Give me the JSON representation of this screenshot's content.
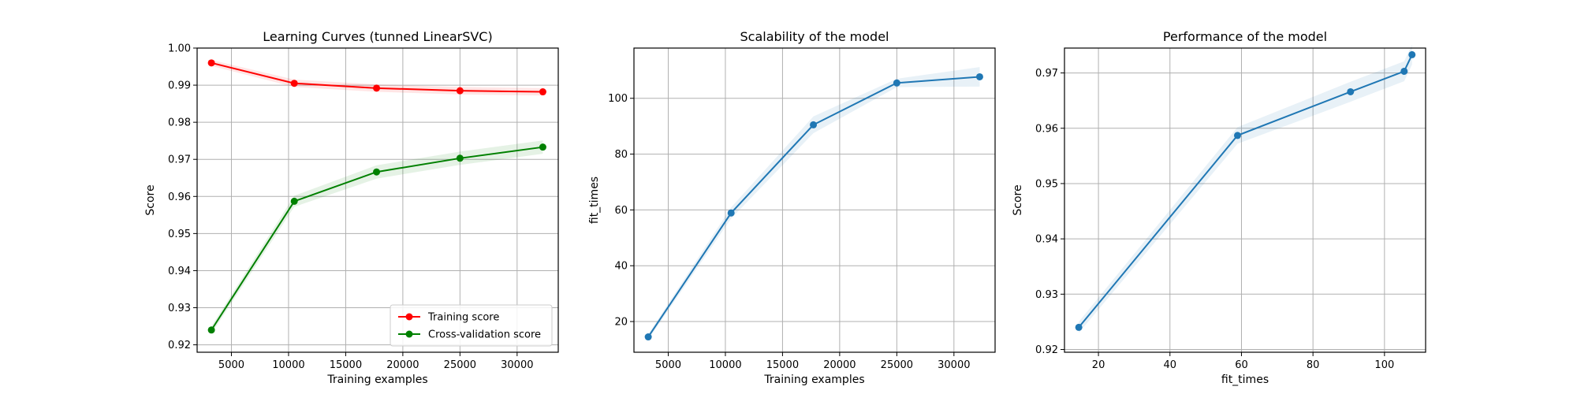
{
  "chart_data": [
    {
      "type": "line",
      "title": "Learning Curves (tunned LinearSVC)",
      "xlabel": "Training examples",
      "ylabel": "Score",
      "xlim": [
        2000,
        33600
      ],
      "ylim": [
        0.918,
        1.0
      ],
      "xticks": [
        5000,
        10000,
        15000,
        20000,
        25000,
        30000
      ],
      "yticks": [
        0.92,
        0.93,
        0.94,
        0.95,
        0.96,
        0.97,
        0.98,
        0.99,
        1.0
      ],
      "ytick_labels": [
        "0.92",
        "0.93",
        "0.94",
        "0.95",
        "0.96",
        "0.97",
        "0.98",
        "0.99",
        "1.00"
      ],
      "grid": true,
      "legend": "lower-right",
      "x": [
        3250,
        10500,
        17700,
        25000,
        32250
      ],
      "series": [
        {
          "name": "Training score",
          "color": "#ff0000",
          "values": [
            0.996,
            0.9905,
            0.9892,
            0.9885,
            0.9882
          ],
          "band": [
            0.0008,
            0.001,
            0.001,
            0.001,
            0.001
          ]
        },
        {
          "name": "Cross-validation score",
          "color": "#008000",
          "values": [
            0.924,
            0.9587,
            0.9666,
            0.9703,
            0.9733
          ],
          "band": [
            0.001,
            0.0015,
            0.0018,
            0.0018,
            0.0018
          ]
        }
      ]
    },
    {
      "type": "line",
      "title": "Scalability of the model",
      "xlabel": "Training examples",
      "ylabel": "fit_times",
      "xlim": [
        2000,
        33600
      ],
      "ylim": [
        9,
        118
      ],
      "xticks": [
        5000,
        10000,
        15000,
        20000,
        25000,
        30000
      ],
      "yticks": [
        20,
        40,
        60,
        80,
        100
      ],
      "ytick_labels": [
        "20",
        "40",
        "60",
        "80",
        "100"
      ],
      "grid": true,
      "x": [
        3250,
        10500,
        17700,
        25000,
        32250
      ],
      "series": [
        {
          "color": "#1f77b4",
          "values": [
            14.5,
            58.9,
            90.5,
            105.5,
            107.7
          ],
          "band": [
            1.0,
            2.0,
            3.0,
            1.5,
            3.5
          ]
        }
      ]
    },
    {
      "type": "line",
      "title": "Performance of the model",
      "xlabel": "fit_times",
      "ylabel": "Score",
      "xlim": [
        10.5,
        111.5
      ],
      "ylim": [
        0.9195,
        0.9745
      ],
      "xticks": [
        20,
        40,
        60,
        80,
        100
      ],
      "yticks": [
        0.92,
        0.93,
        0.94,
        0.95,
        0.96,
        0.97
      ],
      "ytick_labels": [
        "0.92",
        "0.93",
        "0.94",
        "0.95",
        "0.96",
        "0.97"
      ],
      "grid": true,
      "x": [
        14.5,
        58.9,
        90.5,
        105.5,
        107.7
      ],
      "series": [
        {
          "color": "#1f77b4",
          "values": [
            0.924,
            0.9587,
            0.9666,
            0.9703,
            0.9733
          ],
          "band": [
            0.001,
            0.0015,
            0.0018,
            0.0018,
            0.0018
          ]
        }
      ]
    }
  ]
}
